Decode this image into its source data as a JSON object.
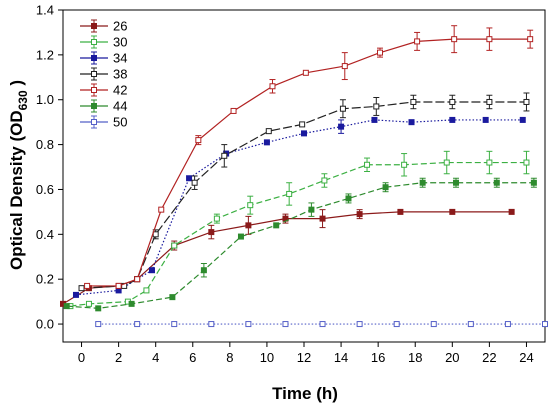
{
  "chart_data": {
    "type": "line",
    "xlabel": "Time (h)",
    "ylabel": {
      "main": "Optical Density (OD",
      "sub": "630",
      "end": " )"
    },
    "xlim": [
      -1,
      25
    ],
    "ylim": [
      -0.08,
      1.4
    ],
    "xticks": [
      0,
      2,
      4,
      6,
      8,
      10,
      12,
      14,
      16,
      18,
      20,
      22,
      24
    ],
    "yticks": [
      0.0,
      0.2,
      0.4,
      0.6,
      0.8,
      1.0,
      1.2,
      1.4
    ],
    "ytick_labels": [
      "0.0",
      "0.2",
      "0.4",
      "0.6",
      "0.8",
      "1.0",
      "1.2",
      "1.4"
    ],
    "legend_position": "top-left",
    "series": [
      {
        "name": "26",
        "color": "#8b1a1a",
        "marker": "filled-square",
        "dash": "",
        "x": [
          -1,
          0.4,
          2,
          3,
          5,
          7,
          9,
          11,
          13,
          15,
          17.2,
          20,
          23.2
        ],
        "y": [
          0.09,
          0.16,
          0.17,
          0.2,
          0.35,
          0.41,
          0.44,
          0.47,
          0.47,
          0.49,
          0.5,
          0.5,
          0.5
        ],
        "err": [
          0,
          0,
          0,
          0,
          0.02,
          0.03,
          0.04,
          0.02,
          0.04,
          0.02,
          0,
          0,
          0
        ]
      },
      {
        "name": "30",
        "color": "#3cb043",
        "marker": "open-square",
        "dash": "6,3",
        "x": [
          -0.6,
          0.4,
          2.5,
          3.5,
          5,
          7.3,
          9.1,
          11.2,
          13.1,
          15.4,
          17.4,
          19.7,
          22,
          24
        ],
        "y": [
          0.08,
          0.09,
          0.1,
          0.15,
          0.35,
          0.47,
          0.53,
          0.58,
          0.64,
          0.71,
          0.71,
          0.72,
          0.72,
          0.72
        ],
        "err": [
          0,
          0,
          0,
          0,
          0,
          0.02,
          0.04,
          0.05,
          0.03,
          0.03,
          0.05,
          0.05,
          0.05,
          0.05
        ]
      },
      {
        "name": "34",
        "color": "#1a1a9e",
        "marker": "filled-square",
        "dash": "1.5,2",
        "x": [
          -0.3,
          2,
          3.8,
          5.8,
          7.8,
          10,
          12,
          14,
          15.8,
          17.8,
          20,
          21.8,
          23.8
        ],
        "y": [
          0.13,
          0.15,
          0.24,
          0.65,
          0.76,
          0.81,
          0.85,
          0.88,
          0.91,
          0.9,
          0.91,
          0.91,
          0.91
        ],
        "err": [
          0,
          0,
          0,
          0,
          0,
          0,
          0,
          0.03,
          0,
          0,
          0,
          0,
          0
        ]
      },
      {
        "name": "38",
        "color": "#222222",
        "marker": "open-square",
        "dash": "9,3",
        "x": [
          0,
          2.3,
          3,
          4,
          6.1,
          7.7,
          10.1,
          11.9,
          14.1,
          15.9,
          17.9,
          20,
          22,
          24
        ],
        "y": [
          0.16,
          0.17,
          0.2,
          0.4,
          0.63,
          0.75,
          0.86,
          0.89,
          0.96,
          0.97,
          0.99,
          0.99,
          0.99,
          0.99
        ],
        "err": [
          0,
          0,
          0,
          0.02,
          0.03,
          0.05,
          0,
          0,
          0.04,
          0.04,
          0.03,
          0.03,
          0.03,
          0.04
        ]
      },
      {
        "name": "42",
        "color": "#b22222",
        "marker": "open-square",
        "dash": "",
        "x": [
          0.3,
          2,
          3,
          4.3,
          6.3,
          8.2,
          10.3,
          12.1,
          14.2,
          16.1,
          18.1,
          20.1,
          22,
          24.2
        ],
        "y": [
          0.17,
          0.17,
          0.2,
          0.51,
          0.82,
          0.95,
          1.06,
          1.12,
          1.15,
          1.21,
          1.26,
          1.27,
          1.27,
          1.27
        ],
        "err": [
          0,
          0,
          0,
          0,
          0.02,
          0,
          0.03,
          0,
          0.06,
          0.02,
          0.04,
          0.06,
          0.05,
          0.04
        ]
      },
      {
        "name": "44",
        "color": "#2e8b2e",
        "marker": "filled-square",
        "dash": "6,3",
        "x": [
          -0.8,
          0.9,
          2.7,
          4.9,
          6.6,
          8.6,
          10.5,
          12.4,
          14.4,
          16.4,
          18.4,
          20.2,
          22.4,
          24.4
        ],
        "y": [
          0.08,
          0.07,
          0.09,
          0.12,
          0.24,
          0.39,
          0.44,
          0.51,
          0.56,
          0.61,
          0.63,
          0.63,
          0.63,
          0.63
        ],
        "err": [
          0,
          0,
          0,
          0,
          0.03,
          0,
          0,
          0.03,
          0.02,
          0.02,
          0.02,
          0.02,
          0.02,
          0.02
        ]
      },
      {
        "name": "50",
        "color": "#5560c8",
        "marker": "open-square",
        "dash": "1.5,2",
        "x": [
          0.9,
          3,
          5,
          7,
          9,
          11,
          13,
          15,
          17,
          19,
          21,
          23,
          25
        ],
        "y": [
          0.0,
          0.0,
          0.0,
          0.0,
          0.0,
          0.0,
          0.0,
          0.0,
          0.0,
          0.0,
          0.0,
          0.0,
          0.0
        ],
        "err": [
          0,
          0,
          0,
          0,
          0,
          0,
          0,
          0,
          0,
          0,
          0,
          0,
          0
        ]
      }
    ]
  }
}
